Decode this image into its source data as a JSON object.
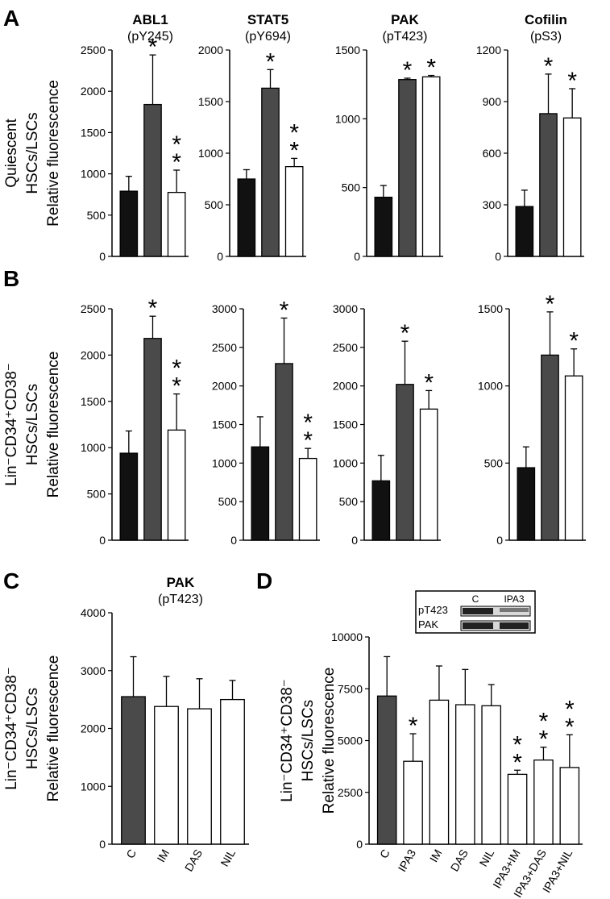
{
  "chart_data": [
    {
      "type": "bar",
      "panel": "A",
      "title": "ABL1",
      "subtitle": "(pY245)",
      "ylabel": [
        "Quiescent",
        "HSCs/LSCs",
        "Relative fluorescence"
      ],
      "categories": [
        null,
        null,
        null
      ],
      "values": [
        790,
        1840,
        775
      ],
      "errors": [
        180,
        600,
        270
      ],
      "colors": [
        "#111111",
        "#4a4a4a",
        "#ffffff"
      ],
      "ylim": [
        0,
        2500
      ],
      "yticks": [
        0,
        500,
        1000,
        1500,
        2000,
        2500
      ],
      "annotations": [
        {
          "bar": 1,
          "text": "*"
        },
        {
          "bar": 2,
          "text": "**"
        }
      ]
    },
    {
      "type": "bar",
      "title": "STAT5",
      "subtitle": "(pY694)",
      "categories": [
        null,
        null,
        null
      ],
      "values": [
        750,
        1630,
        870
      ],
      "errors": [
        90,
        180,
        80
      ],
      "colors": [
        "#111111",
        "#4a4a4a",
        "#ffffff"
      ],
      "ylim": [
        0,
        2000
      ],
      "yticks": [
        0,
        500,
        1000,
        1500,
        2000
      ],
      "annotations": [
        {
          "bar": 1,
          "text": "*"
        },
        {
          "bar": 2,
          "text": "**"
        }
      ]
    },
    {
      "type": "bar",
      "title": "PAK",
      "subtitle": "(pT423)",
      "categories": [
        null,
        null,
        null
      ],
      "values": [
        430,
        1285,
        1305
      ],
      "errors": [
        85,
        10,
        10
      ],
      "colors": [
        "#111111",
        "#4a4a4a",
        "#ffffff"
      ],
      "ylim": [
        0,
        1500
      ],
      "yticks": [
        0,
        500,
        1000,
        1500
      ],
      "annotations": [
        {
          "bar": 1,
          "text": "*"
        },
        {
          "bar": 2,
          "text": "*"
        }
      ]
    },
    {
      "type": "bar",
      "title": "Cofilin",
      "subtitle": "(pS3)",
      "categories": [
        null,
        null,
        null
      ],
      "values": [
        290,
        830,
        805
      ],
      "errors": [
        95,
        230,
        170
      ],
      "colors": [
        "#111111",
        "#4a4a4a",
        "#ffffff"
      ],
      "ylim": [
        0,
        1200
      ],
      "yticks": [
        0,
        300,
        600,
        900,
        1200
      ],
      "annotations": [
        {
          "bar": 1,
          "text": "*"
        },
        {
          "bar": 2,
          "text": "*"
        }
      ]
    },
    {
      "type": "bar",
      "panel": "B",
      "ylabel": [
        "Lin⁻CD34⁺CD38⁻",
        "HSCs/LSCs",
        "Relative fluorescence"
      ],
      "categories": [
        null,
        null,
        null
      ],
      "values": [
        940,
        2180,
        1190
      ],
      "errors": [
        240,
        240,
        390
      ],
      "colors": [
        "#111111",
        "#4a4a4a",
        "#ffffff"
      ],
      "ylim": [
        0,
        2500
      ],
      "yticks": [
        0,
        500,
        1000,
        1500,
        2000,
        2500
      ],
      "annotations": [
        {
          "bar": 1,
          "text": "*"
        },
        {
          "bar": 2,
          "text": "**"
        }
      ]
    },
    {
      "type": "bar",
      "categories": [
        null,
        null,
        null
      ],
      "values": [
        1210,
        2290,
        1060
      ],
      "errors": [
        390,
        590,
        130
      ],
      "colors": [
        "#111111",
        "#4a4a4a",
        "#ffffff"
      ],
      "ylim": [
        0,
        3000
      ],
      "yticks": [
        0,
        500,
        1000,
        1500,
        2000,
        2500,
        3000
      ],
      "annotations": [
        {
          "bar": 1,
          "text": "*"
        },
        {
          "bar": 2,
          "text": "**"
        }
      ]
    },
    {
      "type": "bar",
      "categories": [
        null,
        null,
        null
      ],
      "values": [
        770,
        2020,
        1700
      ],
      "errors": [
        330,
        560,
        240
      ],
      "colors": [
        "#111111",
        "#4a4a4a",
        "#ffffff"
      ],
      "ylim": [
        0,
        3000
      ],
      "yticks": [
        0,
        500,
        1000,
        1500,
        2000,
        2500,
        3000
      ],
      "annotations": [
        {
          "bar": 1,
          "text": "*"
        },
        {
          "bar": 2,
          "text": "*"
        }
      ]
    },
    {
      "type": "bar",
      "categories": [
        null,
        null,
        null
      ],
      "values": [
        470,
        1200,
        1065
      ],
      "errors": [
        135,
        280,
        175
      ],
      "colors": [
        "#111111",
        "#4a4a4a",
        "#ffffff"
      ],
      "ylim": [
        0,
        1500
      ],
      "yticks": [
        0,
        500,
        1000,
        1500
      ],
      "annotations": [
        {
          "bar": 1,
          "text": "*"
        },
        {
          "bar": 2,
          "text": "*"
        }
      ]
    },
    {
      "type": "bar",
      "panel": "C",
      "title": "PAK",
      "subtitle": "(pT423)",
      "ylabel": [
        "Lin⁻CD34⁺CD38⁻",
        "HSCs/LSCs",
        "Relative fluorescence"
      ],
      "categories": [
        "C",
        "IM",
        "DAS",
        "NIL"
      ],
      "values": [
        2550,
        2380,
        2340,
        2500
      ],
      "errors": [
        690,
        520,
        520,
        330
      ],
      "colors": [
        "#4a4a4a",
        "#ffffff",
        "#ffffff",
        "#ffffff"
      ],
      "ylim": [
        0,
        4000
      ],
      "yticks": [
        0,
        1000,
        2000,
        3000,
        4000
      ],
      "annotations": []
    },
    {
      "type": "bar",
      "panel": "D",
      "ylabel": [
        "Lin⁻CD34⁺CD38⁻",
        "HSCs/LSCs",
        "Relative fluorescence"
      ],
      "categories": [
        "C",
        "IPA3",
        "IM",
        "DAS",
        "NIL",
        "IPA3+IM",
        "IPA3+DAS",
        "IPA3+NIL"
      ],
      "values": [
        7150,
        4000,
        6950,
        6730,
        6680,
        3370,
        4060,
        3700
      ],
      "errors": [
        1900,
        1330,
        1650,
        1700,
        1020,
        200,
        620,
        1580
      ],
      "colors": [
        "#4a4a4a",
        "#ffffff",
        "#ffffff",
        "#ffffff",
        "#ffffff",
        "#ffffff",
        "#ffffff",
        "#ffffff"
      ],
      "ylim": [
        0,
        10000
      ],
      "yticks": [
        0,
        2500,
        5000,
        7500,
        10000
      ],
      "annotations": [
        {
          "bar": 1,
          "text": "*"
        },
        {
          "bar": 5,
          "text": "**"
        },
        {
          "bar": 6,
          "text": "**"
        },
        {
          "bar": 7,
          "text": "**"
        }
      ],
      "inset": {
        "rows": [
          "pT423",
          "PAK"
        ],
        "lanes": [
          "C",
          "IPA3"
        ]
      }
    }
  ]
}
